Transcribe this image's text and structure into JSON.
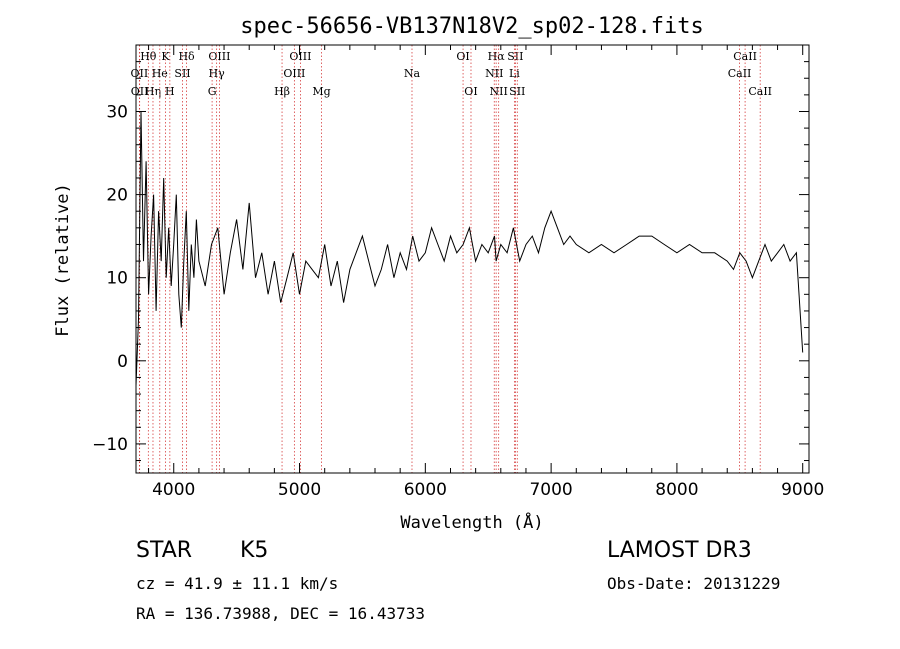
{
  "chart_data": {
    "type": "line",
    "title": "spec-56656-VB137N18V2_sp02-128.fits",
    "xlabel": "Wavelength (Å)",
    "ylabel": "Flux (relative)",
    "xlim": [
      3700,
      9050
    ],
    "ylim": [
      -13.5,
      38
    ],
    "xticks": [
      4000,
      5000,
      6000,
      7000,
      8000,
      9000
    ],
    "yticks": [
      -10,
      0,
      10,
      20,
      30
    ],
    "grid": false,
    "series": [
      {
        "x": [
          3700,
          3720,
          3740,
          3760,
          3780,
          3800,
          3820,
          3840,
          3860,
          3880,
          3900,
          3920,
          3940,
          3960,
          3980,
          4000,
          4020,
          4040,
          4060,
          4080,
          4100,
          4120,
          4140,
          4160,
          4180,
          4200,
          4250,
          4300,
          4350,
          4400,
          4450,
          4500,
          4550,
          4600,
          4650,
          4700,
          4750,
          4800,
          4850,
          4900,
          4950,
          5000,
          5050,
          5100,
          5150,
          5200,
          5250,
          5300,
          5350,
          5400,
          5450,
          5500,
          5550,
          5600,
          5650,
          5700,
          5750,
          5800,
          5850,
          5900,
          5950,
          6000,
          6050,
          6100,
          6150,
          6200,
          6250,
          6300,
          6350,
          6400,
          6450,
          6500,
          6550,
          6563,
          6600,
          6650,
          6700,
          6750,
          6800,
          6850,
          6900,
          6950,
          7000,
          7050,
          7100,
          7150,
          7200,
          7300,
          7400,
          7500,
          7600,
          7700,
          7800,
          7900,
          8000,
          8100,
          8200,
          8300,
          8400,
          8450,
          8500,
          8550,
          8600,
          8650,
          8700,
          8750,
          8800,
          8850,
          8900,
          8950,
          9000
        ],
        "y": [
          -3,
          5,
          30,
          12,
          24,
          8,
          15,
          20,
          6,
          18,
          12,
          22,
          10,
          16,
          9,
          14,
          20,
          8,
          4,
          12,
          18,
          6,
          14,
          10,
          17,
          12,
          9,
          14,
          16,
          8,
          13,
          17,
          11,
          19,
          10,
          13,
          8,
          12,
          7,
          10,
          13,
          8,
          12,
          11,
          10,
          14,
          9,
          12,
          7,
          11,
          13,
          15,
          12,
          9,
          11,
          14,
          10,
          13,
          11,
          15,
          12,
          13,
          16,
          14,
          12,
          15,
          13,
          14,
          16,
          12,
          14,
          13,
          15,
          12,
          14,
          13,
          16,
          12,
          14,
          15,
          13,
          16,
          18,
          16,
          14,
          15,
          14,
          13,
          14,
          13,
          14,
          15,
          15,
          14,
          13,
          14,
          13,
          13,
          12,
          11,
          13,
          12,
          10,
          12,
          14,
          12,
          13,
          14,
          12,
          13,
          1
        ]
      }
    ],
    "lines": [
      {
        "label": "Hθ",
        "x": 3798,
        "row": 0
      },
      {
        "label": "OII",
        "x": 3727,
        "row": 1
      },
      {
        "label": "OII",
        "x": 3729,
        "row": 2
      },
      {
        "label": "Hη",
        "x": 3835,
        "row": 2
      },
      {
        "label": "K",
        "x": 3934,
        "row": 0
      },
      {
        "label": "He",
        "x": 3889,
        "row": 1
      },
      {
        "label": "H",
        "x": 3969,
        "row": 2
      },
      {
        "label": "SII",
        "x": 4070,
        "row": 1
      },
      {
        "label": "Hδ",
        "x": 4102,
        "row": 0
      },
      {
        "label": "OIII",
        "x": 4363,
        "row": 0
      },
      {
        "label": "Hγ",
        "x": 4341,
        "row": 1
      },
      {
        "label": "G",
        "x": 4305,
        "row": 2
      },
      {
        "label": "Hβ",
        "x": 4861,
        "row": 2
      },
      {
        "label": "OIII",
        "x": 5007,
        "row": 0
      },
      {
        "label": "OIII",
        "x": 4959,
        "row": 1
      },
      {
        "label": "Mg",
        "x": 5175,
        "row": 2
      },
      {
        "label": "Na",
        "x": 5894,
        "row": 1
      },
      {
        "label": "OI",
        "x": 6300,
        "row": 0
      },
      {
        "label": "OI",
        "x": 6363,
        "row": 2
      },
      {
        "label": "Hα",
        "x": 6563,
        "row": 0
      },
      {
        "label": "NII",
        "x": 6548,
        "row": 1
      },
      {
        "label": "NII",
        "x": 6583,
        "row": 2
      },
      {
        "label": "SII",
        "x": 6716,
        "row": 0
      },
      {
        "label": "Li",
        "x": 6708,
        "row": 1
      },
      {
        "label": "SII",
        "x": 6731,
        "row": 2
      },
      {
        "label": "CaII",
        "x": 8542,
        "row": 0
      },
      {
        "label": "CaII",
        "x": 8498,
        "row": 1
      },
      {
        "label": "CaII",
        "x": 8662,
        "row": 2
      }
    ]
  },
  "info": {
    "class": "STAR",
    "subclass": "K5",
    "survey": "LAMOST DR3",
    "cz": "cz = 41.9 ± 11.1 km/s",
    "obsdate": "Obs-Date: 20131229",
    "radec": "RA = 136.73988, DEC =  16.43733"
  }
}
